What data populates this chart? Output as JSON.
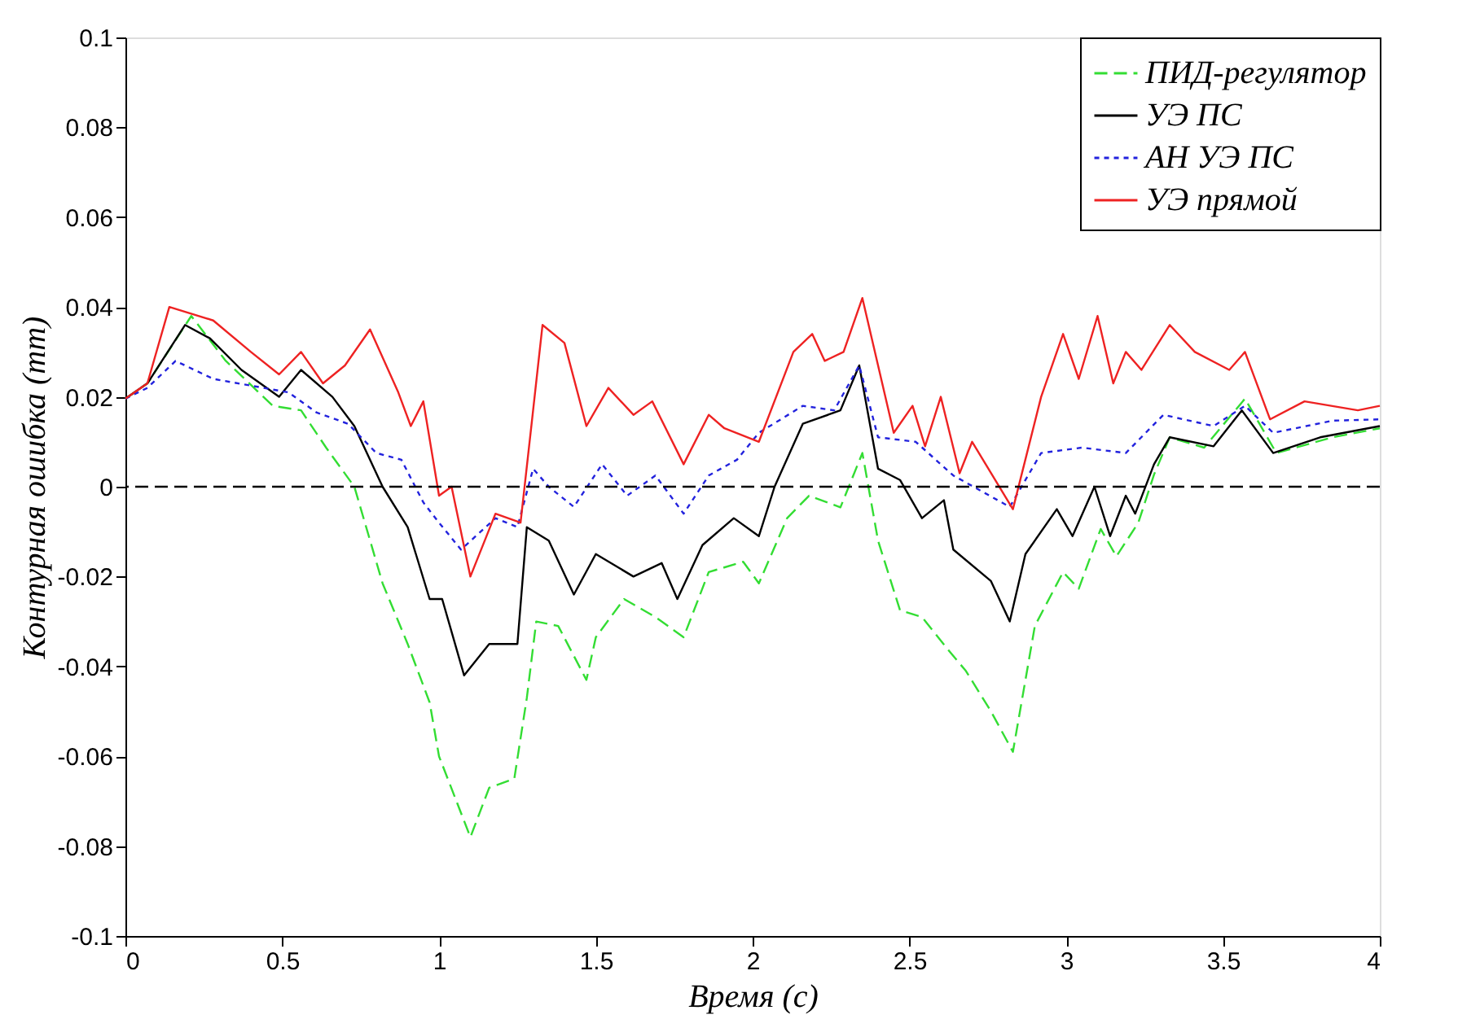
{
  "chart_data": {
    "type": "line",
    "xlabel": "Время (с)",
    "ylabel": "Контурная ошибка   (mm)",
    "xlim": [
      0,
      4
    ],
    "xticks": [
      0,
      0.5,
      1,
      1.5,
      2,
      2.5,
      3,
      3.5,
      4
    ],
    "ylim": [
      -0.1,
      0.1
    ],
    "yticks": [
      -0.1,
      -0.08,
      -0.06,
      -0.04,
      -0.02,
      0,
      0.02,
      0.04,
      0.06,
      0.08,
      0.1
    ],
    "grid": false,
    "legend": "top right",
    "marker": "none",
    "ref_lines": [
      {
        "axis": "y",
        "value": 0,
        "color": "#000000",
        "line_style": "dashed"
      }
    ],
    "series": [
      {
        "name": "ПИД-регулятор",
        "color": "#33dd33",
        "line_style": "dashed",
        "x": [
          0,
          0.07,
          0.21,
          0.32,
          0.47,
          0.56,
          0.64,
          0.73,
          0.82,
          0.9,
          0.97,
          1.0,
          1.1,
          1.16,
          1.24,
          1.28,
          1.31,
          1.38,
          1.47,
          1.5,
          1.59,
          1.69,
          1.78,
          1.86,
          1.97,
          2.02,
          2.11,
          2.18,
          2.28,
          2.35,
          2.4,
          2.47,
          2.54,
          2.62,
          2.68,
          2.76,
          2.83,
          2.9,
          2.99,
          3.04,
          3.11,
          3.16,
          3.23,
          3.28,
          3.33,
          3.44,
          3.57,
          3.67,
          3.85,
          4.0
        ],
        "values": [
          0.0196,
          0.023,
          0.038,
          0.028,
          0.018,
          0.017,
          0.0087,
          0,
          -0.0215,
          -0.035,
          -0.048,
          -0.06,
          -0.078,
          -0.067,
          -0.065,
          -0.047,
          -0.03,
          -0.031,
          -0.043,
          -0.0335,
          -0.025,
          -0.029,
          -0.0335,
          -0.019,
          -0.0167,
          -0.0215,
          -0.007,
          -0.002,
          -0.0046,
          0.0075,
          -0.012,
          -0.0275,
          -0.029,
          -0.036,
          -0.041,
          -0.05,
          -0.059,
          -0.031,
          -0.019,
          -0.0227,
          -0.0094,
          -0.0155,
          -0.008,
          0.0027,
          0.011,
          0.0087,
          0.0196,
          0.0075,
          0.011,
          0.013
        ]
      },
      {
        "name": "УЭ ПС",
        "color": "#000000",
        "line_style": "solid",
        "x": [
          0,
          0.07,
          0.19,
          0.27,
          0.37,
          0.49,
          0.56,
          0.66,
          0.73,
          0.82,
          0.9,
          0.97,
          1.01,
          1.08,
          1.16,
          1.25,
          1.28,
          1.35,
          1.43,
          1.5,
          1.62,
          1.71,
          1.76,
          1.84,
          1.94,
          2.02,
          2.07,
          2.16,
          2.28,
          2.34,
          2.4,
          2.47,
          2.54,
          2.61,
          2.64,
          2.76,
          2.82,
          2.87,
          2.97,
          3.02,
          3.09,
          3.14,
          3.19,
          3.22,
          3.28,
          3.33,
          3.47,
          3.56,
          3.66,
          3.81,
          4.0
        ],
        "values": [
          0.0196,
          0.023,
          0.036,
          0.033,
          0.026,
          0.02,
          0.026,
          0.02,
          0.0135,
          0,
          -0.009,
          -0.025,
          -0.025,
          -0.042,
          -0.035,
          -0.035,
          -0.009,
          -0.012,
          -0.024,
          -0.015,
          -0.02,
          -0.017,
          -0.025,
          -0.013,
          -0.007,
          -0.011,
          0,
          0.014,
          0.017,
          0.027,
          0.004,
          0.0015,
          -0.007,
          -0.003,
          -0.014,
          -0.021,
          -0.03,
          -0.015,
          -0.005,
          -0.011,
          0,
          -0.011,
          -0.002,
          -0.006,
          0.005,
          0.011,
          0.009,
          0.017,
          0.0075,
          0.011,
          0.0135
        ]
      },
      {
        "name": "АН УЭ ПС",
        "color": "#2222dd",
        "line_style": "dotted",
        "x": [
          0,
          0.07,
          0.16,
          0.28,
          0.44,
          0.52,
          0.61,
          0.71,
          0.8,
          0.88,
          0.95,
          1.0,
          1.07,
          1.18,
          1.25,
          1.3,
          1.35,
          1.43,
          1.52,
          1.6,
          1.69,
          1.78,
          1.86,
          1.95,
          2.02,
          2.16,
          2.26,
          2.34,
          2.4,
          2.52,
          2.64,
          2.82,
          2.92,
          3.05,
          3.19,
          3.31,
          3.47,
          3.57,
          3.66,
          3.85,
          4.0
        ],
        "values": [
          0.0196,
          0.022,
          0.028,
          0.024,
          0.022,
          0.021,
          0.0165,
          0.014,
          0.0075,
          0.006,
          -0.0035,
          -0.008,
          -0.014,
          -0.007,
          -0.009,
          0.004,
          0,
          -0.0045,
          0.005,
          -0.002,
          0.0025,
          -0.006,
          0.0025,
          0.006,
          0.012,
          0.018,
          0.017,
          0.027,
          0.011,
          0.01,
          0.0025,
          -0.0045,
          0.0075,
          0.0087,
          0.0075,
          0.016,
          0.0135,
          0.018,
          0.012,
          0.0147,
          0.015
        ]
      },
      {
        "name": "УЭ прямой",
        "color": "#ee2222",
        "line_style": "solid",
        "x": [
          0,
          0.07,
          0.14,
          0.28,
          0.4,
          0.49,
          0.56,
          0.63,
          0.7,
          0.78,
          0.87,
          0.91,
          0.95,
          1.0,
          1.04,
          1.1,
          1.18,
          1.26,
          1.3,
          1.33,
          1.4,
          1.47,
          1.54,
          1.62,
          1.68,
          1.78,
          1.86,
          1.91,
          2.02,
          2.13,
          2.19,
          2.23,
          2.29,
          2.35,
          2.4,
          2.45,
          2.51,
          2.55,
          2.6,
          2.66,
          2.7,
          2.83,
          2.92,
          2.99,
          3.04,
          3.1,
          3.15,
          3.19,
          3.24,
          3.33,
          3.41,
          3.52,
          3.57,
          3.65,
          3.76,
          3.93,
          4.0
        ],
        "values": [
          0.0196,
          0.023,
          0.04,
          0.037,
          0.03,
          0.025,
          0.03,
          0.023,
          0.027,
          0.035,
          0.021,
          0.0135,
          0.019,
          -0.002,
          0,
          -0.02,
          -0.006,
          -0.008,
          0.017,
          0.036,
          0.032,
          0.0135,
          0.022,
          0.016,
          0.019,
          0.005,
          0.016,
          0.013,
          0.01,
          0.03,
          0.034,
          0.028,
          0.03,
          0.042,
          0.027,
          0.012,
          0.018,
          0.009,
          0.02,
          0.003,
          0.01,
          -0.005,
          0.02,
          0.034,
          0.024,
          0.038,
          0.023,
          0.03,
          0.026,
          0.036,
          0.03,
          0.026,
          0.03,
          0.015,
          0.019,
          0.017,
          0.018
        ]
      }
    ]
  }
}
